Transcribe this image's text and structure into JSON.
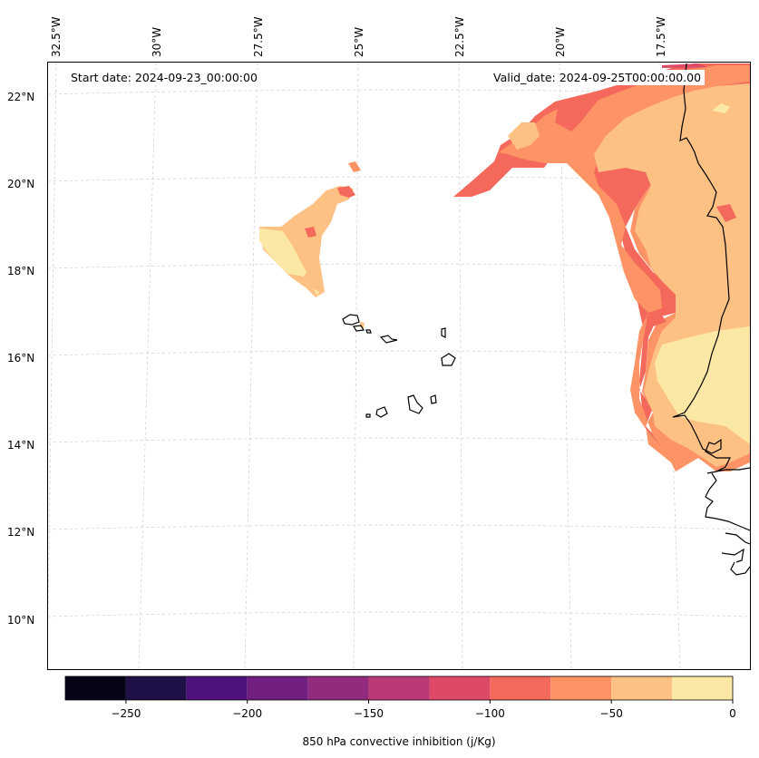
{
  "map": {
    "start_date": "Start date: 2024-09-23_00:00:00",
    "valid_date": "Valid_date: 2024-09-25T00:00:00.00",
    "longitude_labels": [
      "32.5°W",
      "30°W",
      "27.5°W",
      "25°W",
      "22.5°W",
      "20°W",
      "17.5°W"
    ],
    "latitude_labels": [
      "22°N",
      "20°N",
      "18°N",
      "16°N",
      "14°N",
      "12°N",
      "10°N"
    ]
  },
  "colorbar": {
    "label": "850 hPa convective inhibition (j/Kg)",
    "tick_labels": [
      "−250",
      "−200",
      "−150",
      "−100",
      "−50",
      "0"
    ],
    "min": -275,
    "max": 0,
    "step": 25,
    "colors": [
      "#050416",
      "#1f1147",
      "#4f117c",
      "#711f81",
      "#922b7e",
      "#b93a76",
      "#de4968",
      "#f4695c",
      "#fe9366",
      "#fec184",
      "#fce8a5"
    ]
  },
  "legend_colors": {
    "level_0_25": "#fce8a5",
    "level_25_50": "#fec184",
    "level_50_75": "#fe9366",
    "level_75_100": "#f4695c",
    "level_100_125": "#de4968",
    "coastline": "#000000",
    "gridline": "#cccccc"
  }
}
